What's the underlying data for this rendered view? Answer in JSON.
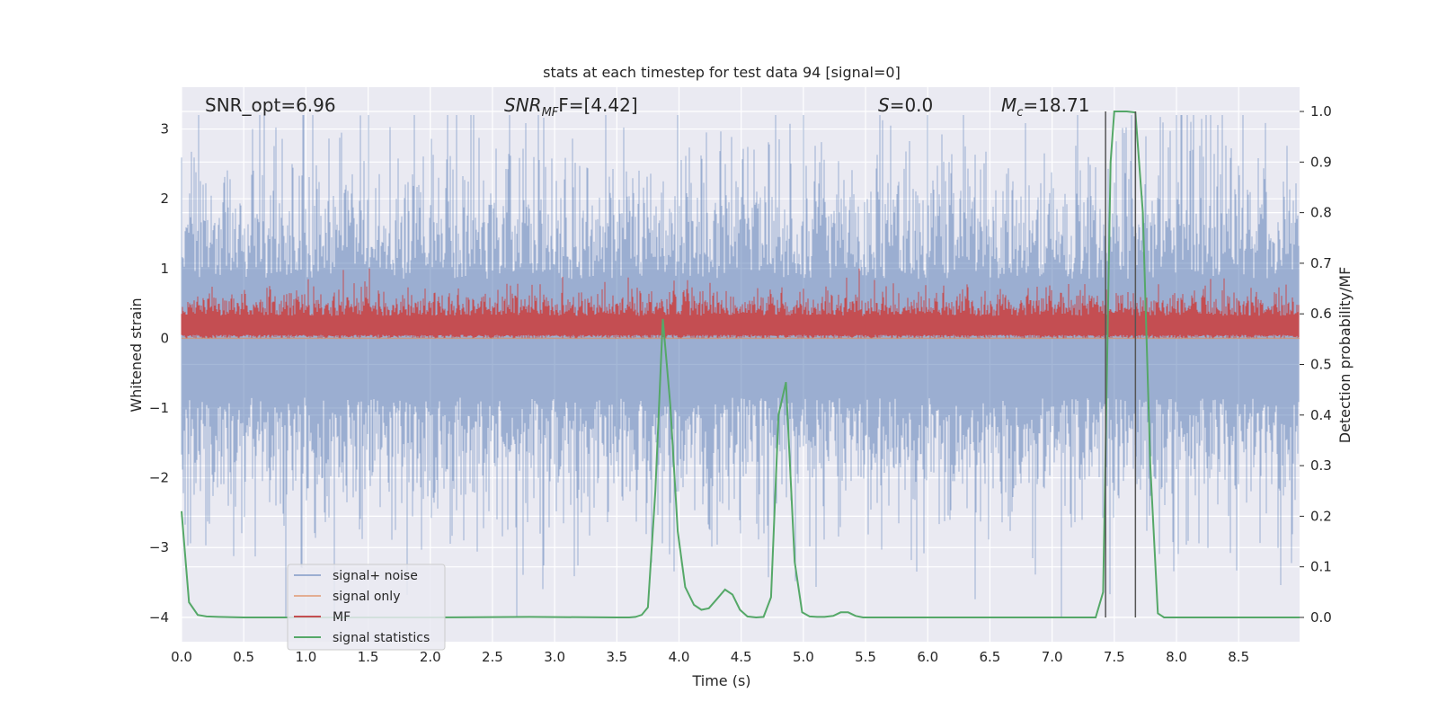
{
  "chart_data": {
    "type": "line",
    "title": "stats at each timestep for test data 94 [signal=0]",
    "xlabel": "Time (s)",
    "ylabel_left": "Whitened strain",
    "ylabel_right": "Detection probability/MF",
    "xlim": [
      0,
      8.99
    ],
    "ylim_left": [
      -4.35,
      3.6
    ],
    "ylim_right": [
      -0.048,
      1.048
    ],
    "x_ticks": [
      "0.0",
      "0.5",
      "1.0",
      "1.5",
      "2.0",
      "2.5",
      "3.0",
      "3.5",
      "4.0",
      "4.5",
      "5.0",
      "5.5",
      "6.0",
      "6.5",
      "7.0",
      "7.5",
      "8.0",
      "8.5"
    ],
    "y_ticks_left": [
      "−4",
      "−3",
      "−2",
      "−1",
      "0",
      "1",
      "2",
      "3"
    ],
    "y_ticks_right": [
      "0.0",
      "0.1",
      "0.2",
      "0.3",
      "0.4",
      "0.5",
      "0.6",
      "0.7",
      "0.8",
      "0.9",
      "1.0"
    ],
    "grid": true,
    "legend_placement": "lower-left",
    "annotations": {
      "snr_opt": "SNR_opt=6.96",
      "snr_mf_base": "SNR",
      "snr_mf_sub": "MF",
      "snr_mf_rest": "F=[4.42]",
      "s_italic": "S",
      "s_rest": "=0.0",
      "mc_base": "M",
      "mc_sub": "c",
      "mc_rest": "=18.71"
    },
    "markers_x": [
      7.43,
      7.67
    ],
    "series": [
      {
        "name": "signal+ noise",
        "color": "#4c72b0",
        "description": "whitened noise, roughly Gaussian, spanning about -4 to 3.2",
        "envelope_approx": {
          "typical_range": [
            -1.8,
            2.2
          ],
          "min": -4.0,
          "max": 3.2
        }
      },
      {
        "name": "signal only",
        "color": "#dd8452",
        "values_approx": "0 across the whole time range"
      },
      {
        "name": "MF",
        "color": "#c44e52",
        "description": "matched-filter output, roughly between 0 and 0.7",
        "envelope_approx": {
          "min": 0.0,
          "max": 1.0
        }
      },
      {
        "name": "signal statistics",
        "color": "#55a868",
        "axis": "right",
        "x": [
          0.0,
          0.06,
          0.13,
          0.2,
          0.3,
          0.5,
          1.0,
          2.0,
          2.8,
          3.5,
          3.6,
          3.65,
          3.7,
          3.75,
          3.81,
          3.87,
          3.93,
          3.99,
          4.05,
          4.12,
          4.18,
          4.24,
          4.3,
          4.37,
          4.43,
          4.49,
          4.55,
          4.62,
          4.68,
          4.74,
          4.8,
          4.86,
          4.93,
          4.99,
          5.05,
          5.11,
          5.17,
          5.24,
          5.3,
          5.36,
          5.42,
          5.48,
          5.55,
          6.0,
          7.0,
          7.35,
          7.41,
          7.47,
          7.5,
          7.55,
          7.6,
          7.67,
          7.73,
          7.79,
          7.85,
          7.9,
          8.0,
          8.5,
          8.99
        ],
        "y": [
          0.21,
          0.03,
          0.005,
          0.002,
          0.001,
          0.0,
          0.0,
          0.0,
          0.001,
          0.0,
          0.0,
          0.001,
          0.005,
          0.02,
          0.25,
          0.59,
          0.42,
          0.17,
          0.06,
          0.025,
          0.015,
          0.018,
          0.035,
          0.055,
          0.045,
          0.015,
          0.002,
          0.0,
          0.001,
          0.04,
          0.4,
          0.465,
          0.11,
          0.01,
          0.002,
          0.001,
          0.001,
          0.003,
          0.01,
          0.01,
          0.003,
          0.0,
          0.0,
          0.0,
          0.0,
          0.0,
          0.05,
          0.9,
          1.0,
          1.0,
          1.0,
          0.998,
          0.8,
          0.3,
          0.008,
          0.0,
          0.0,
          0.0,
          0.0
        ]
      }
    ]
  }
}
